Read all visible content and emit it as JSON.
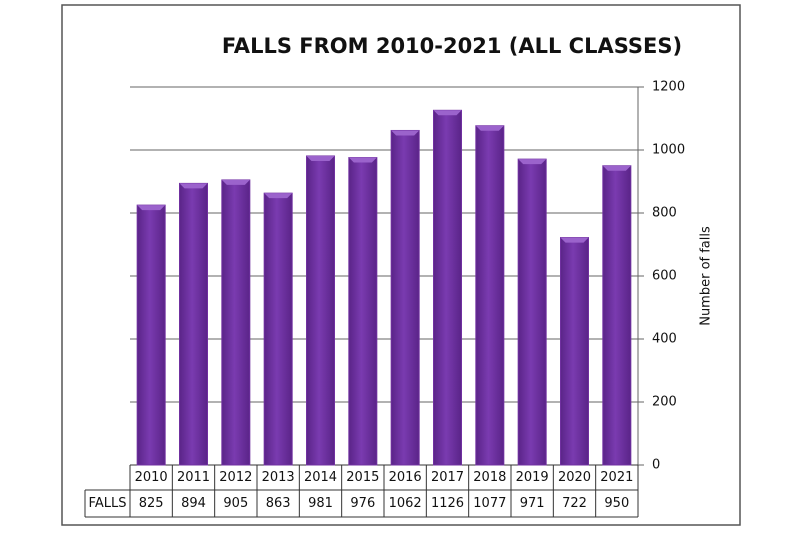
{
  "chart_data": {
    "type": "bar",
    "title": "FALLS FROM 2010-2021 (ALL CLASSES)",
    "y_axis_label": "Number of falls",
    "categories": [
      "2010",
      "2011",
      "2012",
      "2013",
      "2014",
      "2015",
      "2016",
      "2017",
      "2018",
      "2019",
      "2020",
      "2021"
    ],
    "series": [
      {
        "name": "FALLS",
        "color": "#7030a0",
        "values": [
          825,
          894,
          905,
          863,
          981,
          976,
          1062,
          1126,
          1077,
          971,
          722,
          950
        ]
      }
    ],
    "ylim": [
      0,
      1200
    ],
    "yticks": [
      0,
      200,
      400,
      600,
      800,
      1000,
      1200
    ],
    "grid": true
  }
}
